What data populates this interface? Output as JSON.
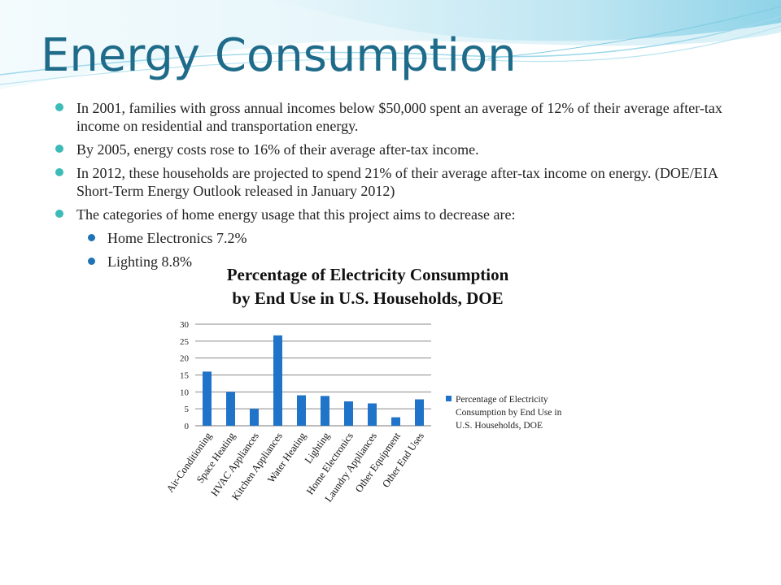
{
  "slide": {
    "title": "Energy Consumption",
    "bullets": [
      {
        "level": 1,
        "text": "In 2001, families with gross annual incomes below $50,000  spent an average of 12% of their average after-tax income on residential and transportation energy."
      },
      {
        "level": 1,
        "text": "By 2005, energy costs rose to 16% of their average after-tax income."
      },
      {
        "level": 1,
        "text": "In 2012, these households are projected to spend 21% of their average after-tax income on energy. (DOE/EIA Short-Term Energy Outlook released in January 2012)"
      },
      {
        "level": 1,
        "text": "The categories of home energy usage that this project aims to decrease are:"
      },
      {
        "level": 2,
        "text": "Home Electronics 7.2%"
      },
      {
        "level": 2,
        "text": "Lighting 8.8%"
      }
    ]
  },
  "colors": {
    "title": "#1f6b8a",
    "bullet_level1": "#3dbbb8",
    "bullet_level2": "#1f73b8",
    "bar": "#1f73c8"
  },
  "chart_data": {
    "type": "bar",
    "title_lines": [
      "Percentage of Electricity Consumption",
      "by End Use in U.S. Households, DOE"
    ],
    "categories": [
      "Air-Conditioning",
      "Space Heating",
      "HVAC Appliances",
      "Kitchen Appliances",
      "Water Heating",
      "Lighting",
      "Home Electronics",
      "Laundry Appliances",
      "Other Equipment",
      "Other End Uses"
    ],
    "series": [
      {
        "name": "Percentage of Electricity Consumption by End Use in U.S. Households, DOE",
        "legend_lines": [
          "Percentage of Electricity",
          "Consumption by End Use in",
          "U.S. Households, DOE"
        ],
        "values": [
          16,
          10,
          5,
          26.7,
          9,
          8.8,
          7.2,
          6.6,
          2.5,
          7.8
        ]
      }
    ],
    "yticks": [
      0,
      5,
      10,
      15,
      20,
      25,
      30
    ],
    "ylim": [
      0,
      30
    ],
    "grid": true,
    "legend_position": "right"
  }
}
